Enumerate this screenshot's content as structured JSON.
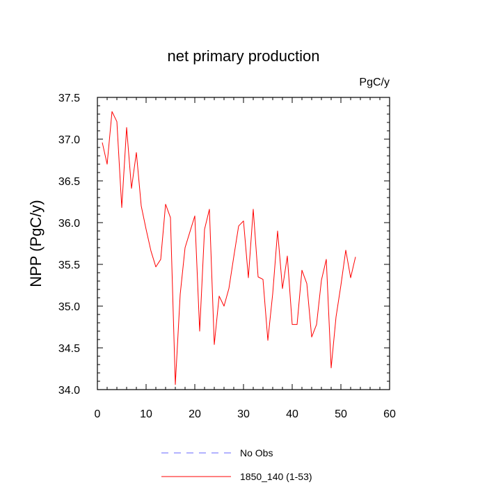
{
  "chart_data": {
    "type": "line",
    "title": "net primary production",
    "units": "PgC/y",
    "ylabel": "NPP  (PgC/y)",
    "xlabel": "",
    "xlim": [
      0,
      60
    ],
    "ylim": [
      34.0,
      37.5
    ],
    "x_ticks": [
      "0",
      "10",
      "20",
      "30",
      "40",
      "50",
      "60"
    ],
    "y_ticks": [
      "34.0",
      "34.5",
      "35.0",
      "35.5",
      "36.0",
      "36.5",
      "37.0",
      "37.5"
    ],
    "grid": false,
    "legend_position": "bottom",
    "series": [
      {
        "name": "No Obs",
        "color": "#6666ff",
        "style": "dashed",
        "values": []
      },
      {
        "name": "1850_140 (1-53)",
        "color": "#ff0000",
        "style": "solid",
        "x": [
          1,
          2,
          3,
          4,
          5,
          6,
          7,
          8,
          9,
          10,
          11,
          12,
          13,
          14,
          15,
          16,
          17,
          18,
          19,
          20,
          21,
          22,
          23,
          24,
          25,
          26,
          27,
          28,
          29,
          30,
          31,
          32,
          33,
          34,
          35,
          36,
          37,
          38,
          39,
          40,
          41,
          42,
          43,
          44,
          45,
          46,
          47,
          48,
          49,
          50,
          51,
          52,
          53
        ],
        "values": [
          36.96,
          36.7,
          37.33,
          37.21,
          36.18,
          37.14,
          36.41,
          36.84,
          36.2,
          35.92,
          35.66,
          35.47,
          35.56,
          36.22,
          36.06,
          34.06,
          35.14,
          35.7,
          35.89,
          36.08,
          34.7,
          35.92,
          36.16,
          34.54,
          35.12,
          35.0,
          35.21,
          35.59,
          35.96,
          36.02,
          35.34,
          36.16,
          35.35,
          35.32,
          34.59,
          35.15,
          35.9,
          35.21,
          35.6,
          34.78,
          34.78,
          35.43,
          35.27,
          34.63,
          34.78,
          35.31,
          35.56,
          34.26,
          34.87,
          35.25,
          35.67,
          35.34,
          35.59
        ]
      }
    ]
  }
}
